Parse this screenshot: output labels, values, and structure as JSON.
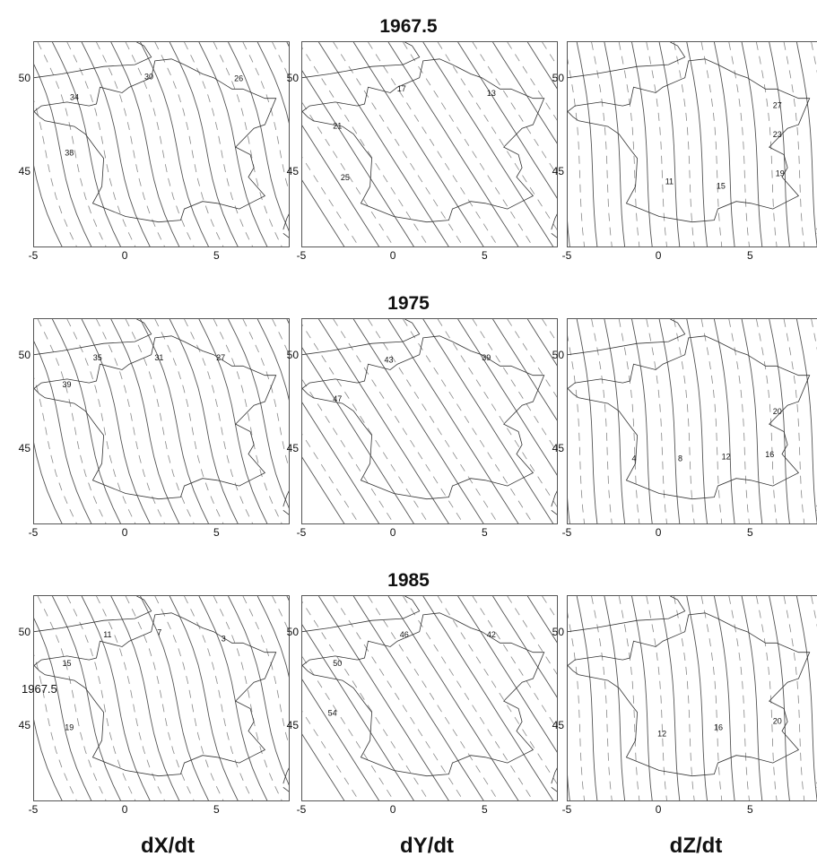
{
  "rows": [
    {
      "title": "1967.5",
      "top": 18,
      "panels": [
        {
          "labels": [
            "34",
            "30",
            "26",
            "38"
          ]
        },
        {
          "labels": [
            "17",
            "13",
            "21",
            "25"
          ]
        },
        {
          "labels": [
            "27",
            "23",
            "19",
            "15",
            "11"
          ]
        }
      ]
    },
    {
      "title": "1975",
      "top": 327,
      "panels": [
        {
          "labels": [
            "35",
            "31",
            "27",
            "39"
          ]
        },
        {
          "labels": [
            "43",
            "39",
            "47"
          ]
        },
        {
          "labels": [
            "20",
            "16",
            "12",
            "8",
            "4"
          ]
        }
      ]
    },
    {
      "title": "1985",
      "top": 636,
      "panels": [
        {
          "labels": [
            "11",
            "7",
            "3",
            "15",
            "19"
          ]
        },
        {
          "labels": [
            "46",
            "42",
            "50",
            "54"
          ]
        },
        {
          "labels": [
            "12",
            "16",
            "20"
          ]
        }
      ]
    }
  ],
  "axes": {
    "x_ticks": [
      "-5",
      "0",
      "5"
    ],
    "y_ticks": [
      "50",
      "45"
    ],
    "xlim": [
      -5,
      9
    ],
    "ylim": [
      41,
      52
    ]
  },
  "column_labels": [
    "dX/dt",
    "dY/dt",
    "dZ/dt"
  ],
  "stray_label": "1967.5"
}
